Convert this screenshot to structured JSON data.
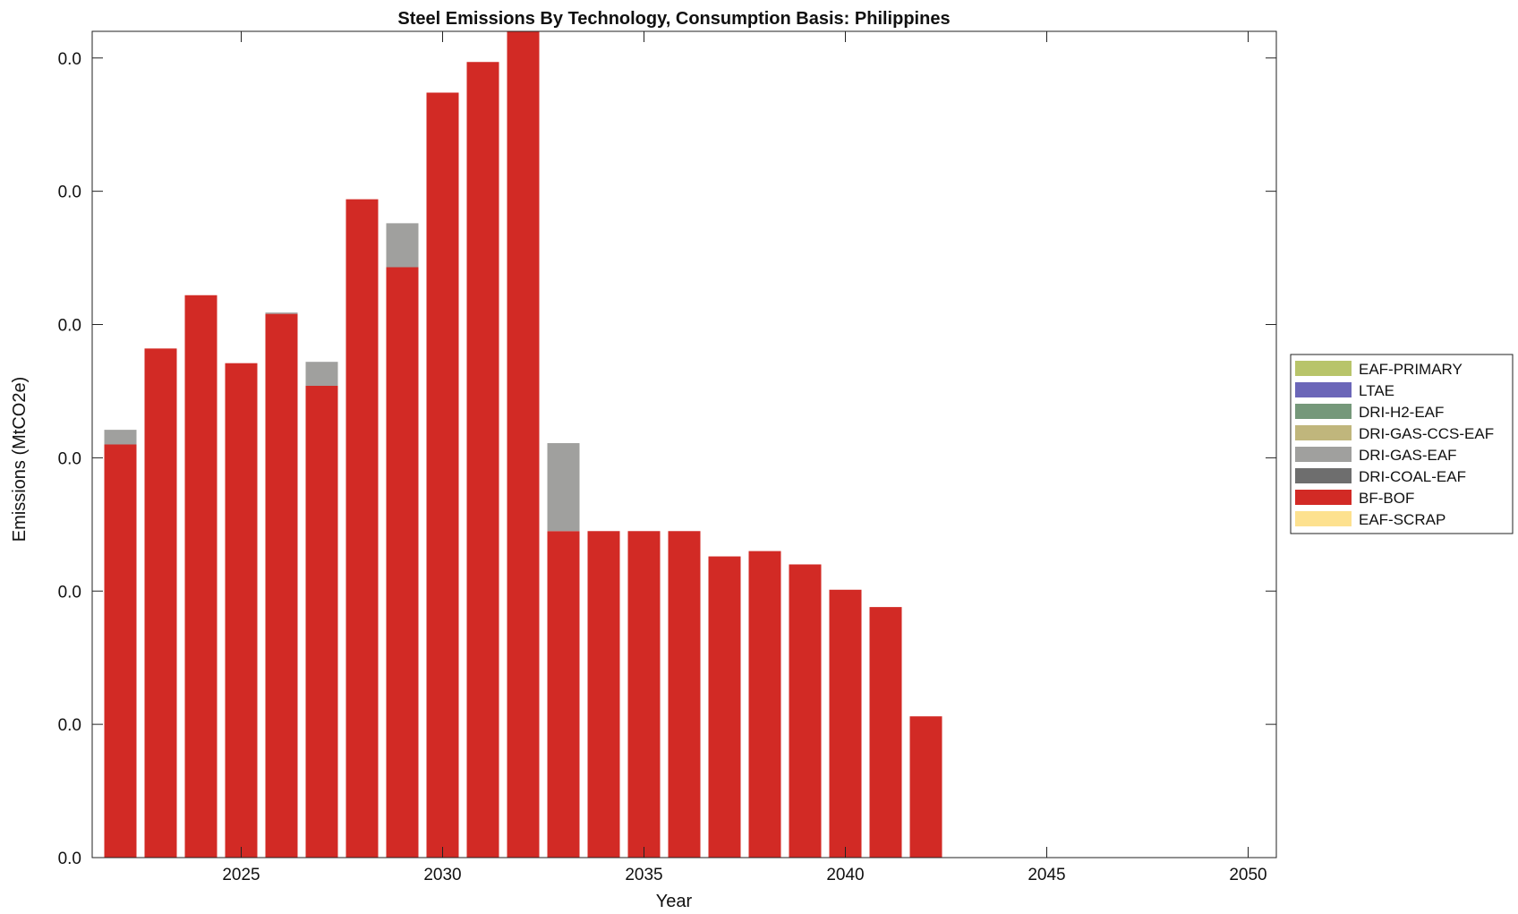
{
  "chart_data": {
    "type": "bar",
    "stacked": true,
    "title": "Steel Emissions By Technology, Consumption Basis: Philippines",
    "xlabel": "Year",
    "ylabel": "Emissions (MtCO2e)",
    "xlim": [
      2021.3,
      2050.7
    ],
    "ylim": [
      0,
      0.0062
    ],
    "y_tick_values": [
      0,
      0.001,
      0.002,
      0.003,
      0.004,
      0.005,
      0.006
    ],
    "y_tick_labels": [
      "0.0",
      "0.0",
      "0.0",
      "0.0",
      "0.0",
      "0.0",
      "0.0"
    ],
    "x_ticks": [
      2025,
      2030,
      2035,
      2040,
      2045,
      2050
    ],
    "x_tick_labels": [
      "2025",
      "2030",
      "2035",
      "2040",
      "2045",
      "2050"
    ],
    "grid": false,
    "legend_position": "right",
    "categories": [
      2022,
      2023,
      2024,
      2025,
      2026,
      2027,
      2028,
      2029,
      2030,
      2031,
      2032,
      2033,
      2034,
      2035,
      2036,
      2037,
      2038,
      2039,
      2040,
      2041,
      2042,
      2043,
      2044,
      2045,
      2046,
      2047,
      2048,
      2049,
      2050
    ],
    "stack_order": [
      "EAF-SCRAP",
      "BF-BOF",
      "DRI-COAL-EAF",
      "DRI-GAS-EAF",
      "DRI-GAS-CCS-EAF",
      "DRI-H2-EAF",
      "LTAE",
      "EAF-PRIMARY"
    ],
    "legend_entries": [
      "EAF-PRIMARY",
      "LTAE",
      "DRI-H2-EAF",
      "DRI-GAS-CCS-EAF",
      "DRI-GAS-EAF",
      "DRI-COAL-EAF",
      "BF-BOF",
      "EAF-SCRAP"
    ],
    "series": [
      {
        "name": "EAF-PRIMARY",
        "color": "#b8c46a",
        "values": [
          0,
          0,
          0,
          0,
          0,
          0,
          0,
          0,
          0,
          0,
          0,
          0,
          0,
          0,
          0,
          0,
          0,
          0,
          0,
          0,
          0,
          0,
          0,
          0,
          0,
          0,
          0,
          0,
          0
        ]
      },
      {
        "name": "LTAE",
        "color": "#6b66b8",
        "values": [
          0,
          0,
          0,
          0,
          0,
          0,
          0,
          0,
          0,
          0,
          0,
          0,
          0,
          0,
          0,
          0,
          0,
          0,
          0,
          0,
          0,
          0,
          0,
          0,
          0,
          0,
          0,
          0,
          0
        ]
      },
      {
        "name": "DRI-H2-EAF",
        "color": "#75987a",
        "values": [
          0,
          0,
          0,
          0,
          0,
          0,
          0,
          0,
          0,
          0,
          0,
          0,
          0,
          0,
          0,
          0,
          0,
          0,
          0,
          0,
          0,
          0,
          0,
          0,
          0,
          0,
          0,
          0,
          0
        ]
      },
      {
        "name": "DRI-GAS-CCS-EAF",
        "color": "#c0b67c",
        "values": [
          0,
          0,
          0,
          0,
          0,
          0,
          0,
          0,
          0,
          0,
          0,
          0,
          0,
          0,
          0,
          0,
          0,
          0,
          0,
          0,
          0,
          0,
          0,
          0,
          0,
          0,
          0,
          0,
          0
        ]
      },
      {
        "name": "DRI-GAS-EAF",
        "color": "#a0a09e",
        "values": [
          0.00011,
          0,
          0,
          0,
          1e-05,
          0.00018,
          0,
          0.00033,
          0,
          0,
          0,
          0.00066,
          0,
          0,
          0,
          0,
          0,
          0,
          0,
          0,
          0,
          0,
          0,
          0,
          0,
          0,
          0,
          0,
          0
        ]
      },
      {
        "name": "DRI-COAL-EAF",
        "color": "#6e6e6e",
        "values": [
          0,
          0,
          0,
          0,
          0,
          0,
          0,
          0,
          0,
          0,
          0,
          0,
          0,
          0,
          0,
          0,
          0,
          0,
          0,
          0,
          0,
          0,
          0,
          0,
          0,
          0,
          0,
          0,
          0
        ]
      },
      {
        "name": "BF-BOF",
        "color": "#d22a25",
        "values": [
          0.0031,
          0.00382,
          0.00422,
          0.00371,
          0.00408,
          0.00354,
          0.00494,
          0.00443,
          0.00574,
          0.00597,
          0.0062,
          0.00245,
          0.00245,
          0.00245,
          0.00245,
          0.00226,
          0.0023,
          0.0022,
          0.00201,
          0.00188,
          0.00106,
          0,
          0,
          0,
          0,
          0,
          0,
          0,
          0
        ]
      },
      {
        "name": "EAF-SCRAP",
        "color": "#fde18f",
        "values": [
          0,
          0,
          0,
          0,
          0,
          0,
          0,
          0,
          0,
          0,
          0,
          0,
          0,
          0,
          0,
          0,
          0,
          0,
          0,
          0,
          0,
          0,
          0,
          0,
          0,
          0,
          0,
          0,
          0
        ]
      }
    ]
  }
}
